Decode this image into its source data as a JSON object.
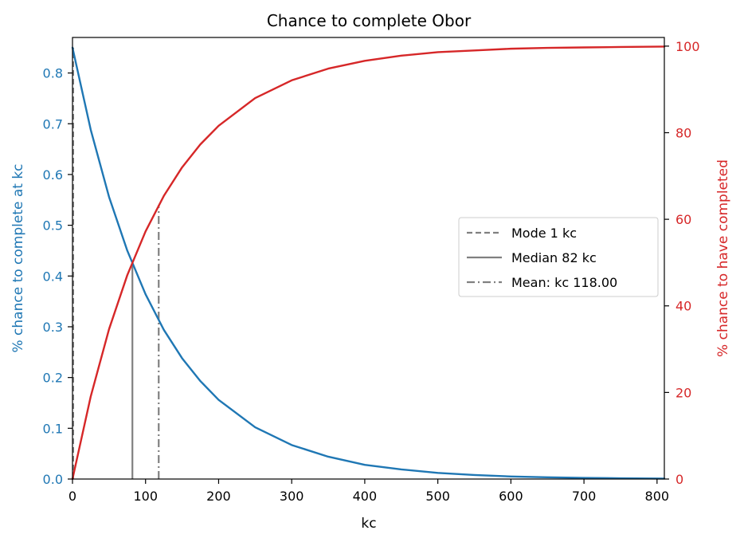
{
  "chart_data": {
    "type": "line",
    "title": "Chance to complete Obor",
    "xlabel": "kc",
    "ylabel_left": "% chance to complete at kc",
    "ylabel_right": "% chance to have completed",
    "xlim": [
      0,
      810
    ],
    "ylim_left": [
      0,
      0.87
    ],
    "ylim_right": [
      0,
      102
    ],
    "x_ticks": [
      0,
      100,
      200,
      300,
      400,
      500,
      600,
      700,
      800
    ],
    "y_ticks_left": [
      "0.0",
      "0.1",
      "0.2",
      "0.3",
      "0.4",
      "0.5",
      "0.6",
      "0.7",
      "0.8"
    ],
    "y_ticks_right": [
      "0",
      "20",
      "40",
      "60",
      "80",
      "100"
    ],
    "grid": false,
    "legend_position": "center-right",
    "colors": {
      "left_axis": "#1f77b4",
      "right_axis": "#d62728",
      "markers": "#808080"
    },
    "series": [
      {
        "axis": "left",
        "color": "#1f77b4",
        "x": [
          0,
          25,
          50,
          75,
          100,
          125,
          150,
          175,
          200,
          250,
          300,
          350,
          400,
          450,
          500,
          550,
          600,
          650,
          700,
          750,
          810
        ],
        "y": [
          0.85,
          0.688,
          0.556,
          0.45,
          0.364,
          0.294,
          0.238,
          0.193,
          0.156,
          0.102,
          0.067,
          0.044,
          0.028,
          0.019,
          0.012,
          0.008,
          0.005,
          0.0035,
          0.0023,
          0.0015,
          0.0009
        ]
      },
      {
        "axis": "right",
        "color": "#d62728",
        "x": [
          0,
          25,
          50,
          75,
          100,
          125,
          150,
          175,
          200,
          250,
          300,
          350,
          400,
          450,
          500,
          550,
          600,
          650,
          700,
          750,
          810
        ],
        "y": [
          0,
          19.1,
          34.6,
          47.1,
          57.2,
          65.4,
          72.0,
          77.3,
          81.6,
          88.0,
          92.1,
          94.8,
          96.6,
          97.8,
          98.6,
          99.0,
          99.4,
          99.6,
          99.7,
          99.8,
          99.9
        ]
      }
    ],
    "markers": [
      {
        "label": "Mode 1 kc",
        "x": 1,
        "style": "dashed",
        "y_top_left": 0.85
      },
      {
        "label": "Median 82 kc",
        "x": 82,
        "style": "solid",
        "y_top_left": 0.425
      },
      {
        "label": "Mean: kc 118.00",
        "x": 118,
        "style": "dashdot",
        "y_top_left": 0.54
      }
    ]
  }
}
